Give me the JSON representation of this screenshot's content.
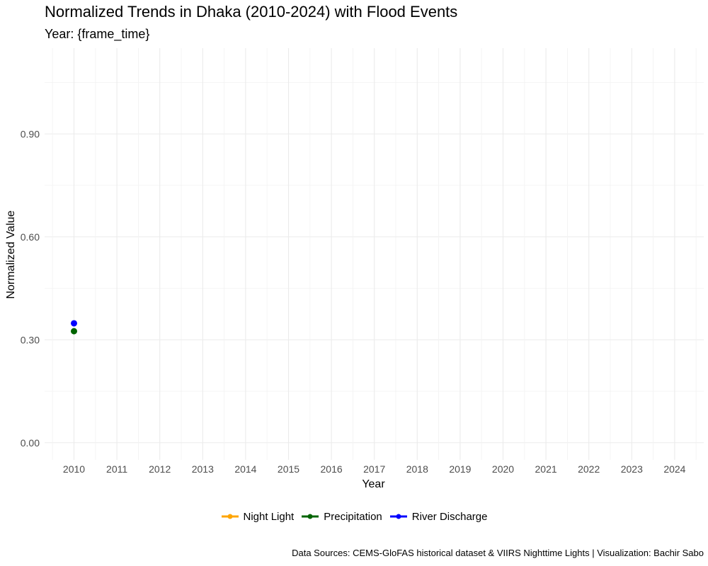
{
  "title": "Normalized Trends in Dhaka (2010-2024) with Flood Events",
  "subtitle": "Year: {frame_time}",
  "caption": "Data Sources: CEMS-GloFAS historical dataset & VIIRS Nighttime Lights | Visualization: Bachir Sabo",
  "chart_data": {
    "type": "line",
    "title": "Normalized Trends in Dhaka (2010-2024) with Flood Events",
    "subtitle": "Year: {frame_time}",
    "xlabel": "Year",
    "ylabel": "Normalized Value",
    "x": [
      "2010",
      "2011",
      "2012",
      "2013",
      "2014",
      "2015",
      "2016",
      "2017",
      "2018",
      "2019",
      "2020",
      "2021",
      "2022",
      "2023",
      "2024"
    ],
    "yticks": [
      "0.00",
      "0.30",
      "0.60",
      "0.90"
    ],
    "ylim": [
      -0.05,
      1.15
    ],
    "grid": true,
    "legend_position": "bottom",
    "series": [
      {
        "name": "Night Light",
        "color": "#FFA500",
        "points": []
      },
      {
        "name": "Precipitation",
        "color": "#006400",
        "points": [
          {
            "x": "2010",
            "y": 0.325
          }
        ]
      },
      {
        "name": "River Discharge",
        "color": "#0000FF",
        "points": [
          {
            "x": "2010",
            "y": 0.348
          }
        ]
      }
    ]
  }
}
